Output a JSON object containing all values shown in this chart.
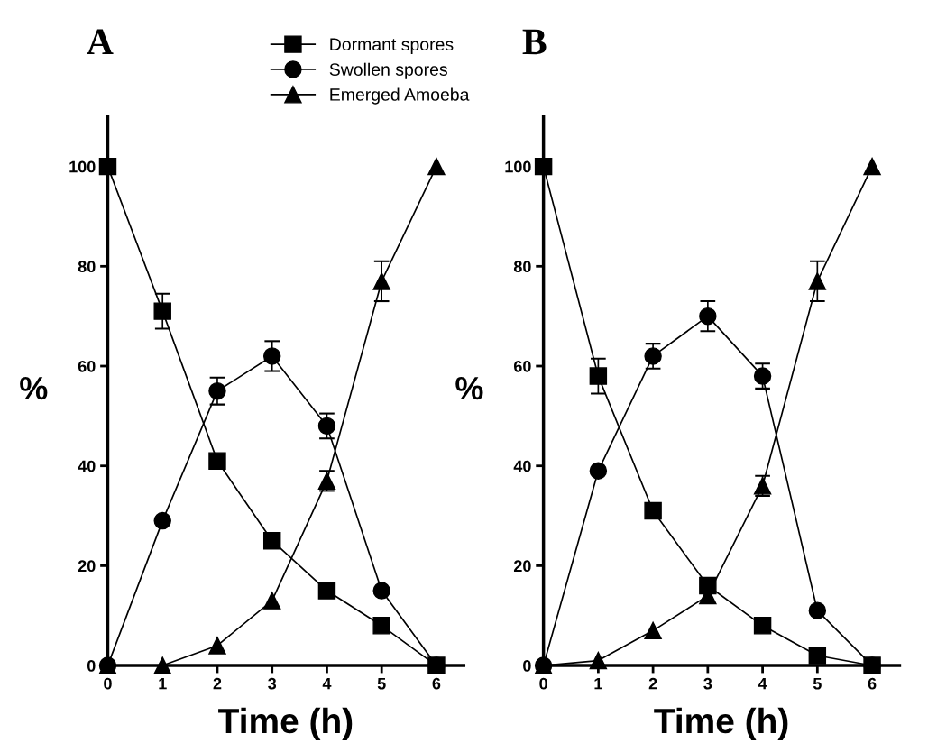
{
  "chart_data": [
    {
      "type": "line",
      "title": "A",
      "xlabel": "Time (h)",
      "ylabel": "%",
      "x": [
        0,
        1,
        2,
        3,
        4,
        5,
        6
      ],
      "xlim": [
        0,
        6.5
      ],
      "ylim": [
        0,
        110
      ],
      "xticks": [
        0,
        1,
        2,
        3,
        4,
        5,
        6
      ],
      "yticks": [
        0,
        20,
        40,
        60,
        80,
        100
      ],
      "legend": "top right",
      "grid": false,
      "series": [
        {
          "name": "Dormant spores",
          "color": "#000000",
          "marker": "square",
          "values": [
            100,
            71,
            41,
            25,
            15,
            8,
            0
          ],
          "errors": [
            null,
            3.5,
            null,
            null,
            null,
            null,
            null
          ]
        },
        {
          "name": "Swollen spores",
          "color": "#000000",
          "marker": "circle",
          "values": [
            0,
            29,
            55,
            62,
            48,
            15,
            0
          ],
          "errors": [
            null,
            null,
            2.7,
            3,
            2.5,
            null,
            null
          ]
        },
        {
          "name": "Emerged Amoeba",
          "color": "#000000",
          "marker": "triangle",
          "values": [
            0,
            0,
            4,
            13,
            37,
            77,
            100
          ],
          "errors": [
            null,
            null,
            null,
            null,
            2,
            4,
            null
          ]
        }
      ]
    },
    {
      "type": "line",
      "title": "B",
      "xlabel": "Time (h)",
      "ylabel": "%",
      "x": [
        0,
        1,
        2,
        3,
        4,
        5,
        6
      ],
      "xlim": [
        0,
        6.5
      ],
      "ylim": [
        0,
        110
      ],
      "xticks": [
        0,
        1,
        2,
        3,
        4,
        5,
        6
      ],
      "yticks": [
        0,
        20,
        40,
        60,
        80,
        100
      ],
      "grid": false,
      "series": [
        {
          "color": "#000000",
          "marker": "square",
          "values": [
            100,
            58,
            31,
            16,
            8,
            2,
            0
          ],
          "errors": [
            null,
            3.5,
            null,
            null,
            null,
            null,
            null
          ]
        },
        {
          "color": "#000000",
          "marker": "circle",
          "values": [
            0,
            39,
            62,
            70,
            58,
            11,
            0
          ],
          "errors": [
            null,
            null,
            2.5,
            3,
            2.5,
            null,
            null
          ]
        },
        {
          "color": "#000000",
          "marker": "triangle",
          "values": [
            0,
            1,
            7,
            14,
            36,
            77,
            100
          ],
          "errors": [
            null,
            null,
            null,
            null,
            2,
            4,
            null
          ]
        }
      ]
    }
  ]
}
